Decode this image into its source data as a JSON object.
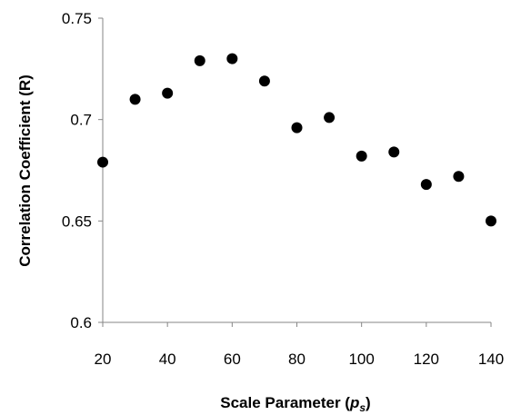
{
  "chart_data": {
    "type": "scatter",
    "xlabel": "Scale Parameter (",
    "xlabel_symbol": "p",
    "xlabel_subscript": "s",
    "xlabel_close": ")",
    "ylabel": "Correlation Coefficient (R)",
    "xlim": [
      20,
      140
    ],
    "ylim": [
      0.6,
      0.75
    ],
    "x_ticks": [
      "20",
      "40",
      "60",
      "80",
      "100",
      "120",
      "140"
    ],
    "y_ticks": [
      "0.6",
      "0.65",
      "0.7",
      "0.75"
    ],
    "grid": false,
    "legend": "none",
    "marker_color": "#000000",
    "x": [
      20,
      30,
      40,
      50,
      60,
      70,
      80,
      90,
      100,
      110,
      120,
      130,
      140
    ],
    "y": [
      0.679,
      0.71,
      0.713,
      0.729,
      0.73,
      0.719,
      0.696,
      0.701,
      0.682,
      0.684,
      0.668,
      0.672,
      0.65
    ]
  }
}
